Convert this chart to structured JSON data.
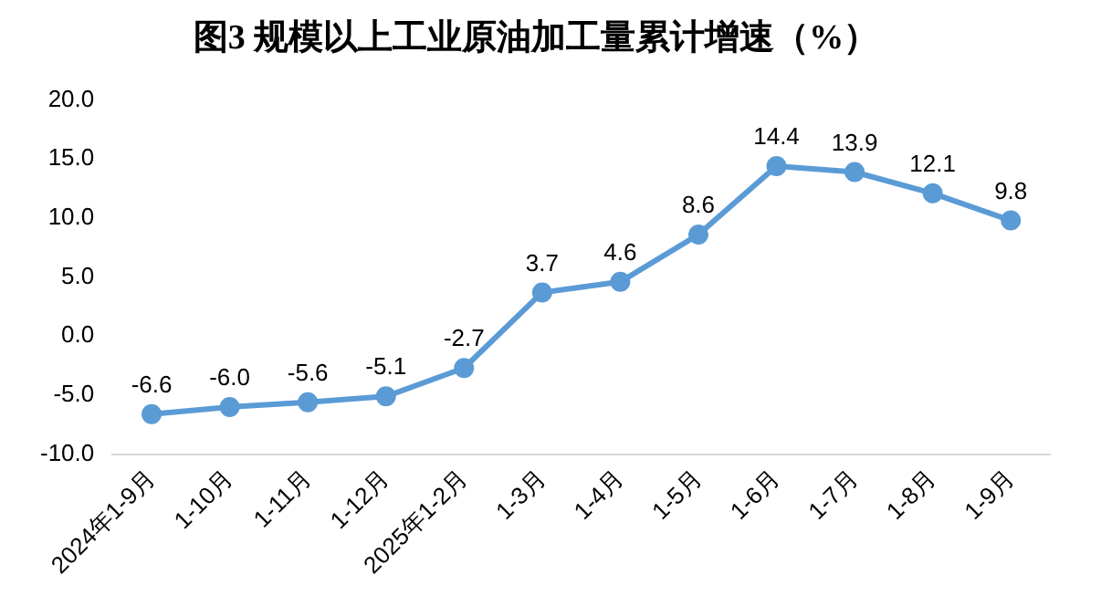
{
  "chart_data": {
    "type": "line",
    "title": "图3 规模以上工业原油加工量累计增速（%）",
    "categories": [
      "2024年1-9月",
      "1-10月",
      "1-11月",
      "1-12月",
      "2025年1-2月",
      "1-3月",
      "1-4月",
      "1-5月",
      "1-6月",
      "1-7月",
      "1-8月",
      "1-9月"
    ],
    "series": [
      {
        "color": "#5b9bd5",
        "values": [
          -6.6,
          -6.0,
          -5.6,
          -5.1,
          -2.7,
          3.7,
          4.6,
          8.6,
          14.4,
          13.9,
          12.1,
          9.8
        ],
        "value_labels": [
          "-6.6",
          "-6.0",
          "-5.6",
          "-5.1",
          "-2.7",
          "3.7",
          "4.6",
          "8.6",
          "14.4",
          "13.9",
          "12.1",
          "9.8"
        ]
      }
    ],
    "ylim": [
      -10,
      20
    ],
    "yticks": [
      {
        "value": -10,
        "label": "-10.0"
      },
      {
        "value": -5,
        "label": "-5.0"
      },
      {
        "value": 0,
        "label": "0.0"
      },
      {
        "value": 5,
        "label": "5.0"
      },
      {
        "value": 10,
        "label": "10.0"
      },
      {
        "value": 15,
        "label": "15.0"
      },
      {
        "value": 20,
        "label": "20.0"
      }
    ],
    "grid": false,
    "legend": false,
    "marker": "circle",
    "line_style": "solid"
  }
}
